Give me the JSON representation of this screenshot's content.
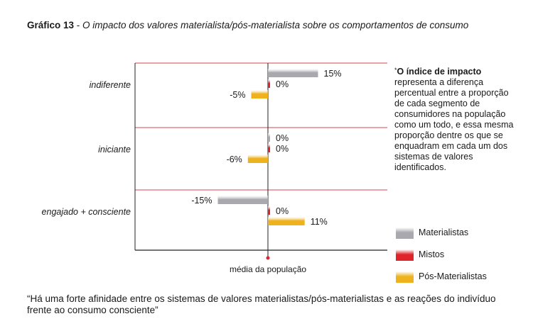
{
  "title": {
    "number": "Gráfico 13",
    "separator": " - ",
    "subtitle": "O impacto dos valores materialista/pós-materialista sobre os comportamentos de consumo"
  },
  "note": {
    "marker": "*",
    "bold": "O índice de impacto",
    "text": " representa a diferença percentual entre a proporção de cada segmento de consumidores na população como um todo, e essa mesma proporção dentre os que se enquadram em cada um dos sistemas de valores identificados."
  },
  "quote": "“Há uma forte afinidade entre os sistemas de valores materialistas/pós-materialistas e as reações do indivíduo frente ao consumo consciente”",
  "colors": {
    "Materialistas": "#a8a8ae",
    "Mistos": "#e0242b",
    "Pós-Materialistas": "#efb21f",
    "grid": "#d64650",
    "axis": "#222222"
  },
  "chart_data": {
    "type": "bar",
    "orientation": "horizontal",
    "xlabel": "média da população",
    "xlim": [
      -20,
      20
    ],
    "categories": [
      "indiferente",
      "iniciante",
      "engajado + consciente"
    ],
    "series": [
      {
        "name": "Materialistas",
        "values": [
          15,
          0,
          -15
        ],
        "labels": [
          "15%",
          "0%",
          "-15%"
        ]
      },
      {
        "name": "Mistos",
        "values": [
          0,
          0,
          0
        ],
        "labels": [
          "0%",
          "0%",
          "0%"
        ]
      },
      {
        "name": "Pós-Materialistas",
        "values": [
          -5,
          -6,
          11
        ],
        "labels": [
          "-5%",
          "-6%",
          "11%"
        ]
      }
    ]
  }
}
